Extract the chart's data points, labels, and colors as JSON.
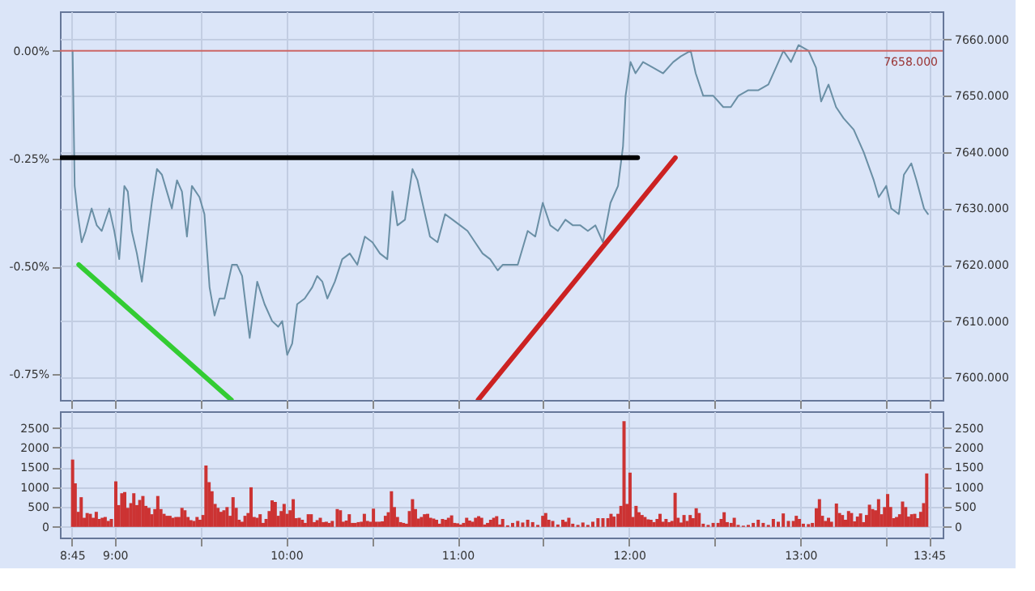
{
  "chart_data": [
    {
      "type": "line",
      "xlim": [
        8.68,
        13.83
      ],
      "ylim": [
        -0.8096,
        0.0914
      ],
      "yticks": [
        {
          "value": -0.75,
          "label": "-0.75%"
        },
        {
          "value": -0.5,
          "label": "-0.50%"
        },
        {
          "value": -0.25,
          "label": "-0.25%"
        },
        {
          "value": 0,
          "label": "0.00%"
        }
      ],
      "y2lim": [
        7596,
        7665
      ],
      "y2ticks": [
        {
          "value": 7600,
          "label": "7600.000"
        },
        {
          "value": 7610,
          "label": "7610.000"
        },
        {
          "value": 7620,
          "label": "7620.000"
        },
        {
          "value": 7630,
          "label": "7630.000"
        },
        {
          "value": 7640,
          "label": "7640.000"
        },
        {
          "value": 7650,
          "label": "7650.000"
        },
        {
          "value": 7660,
          "label": "7660.000"
        }
      ],
      "tick_labels": [
        "y",
        "y2"
      ],
      "grid": true,
      "ref_lines": [
        {
          "axis": "y2",
          "value": 7658,
          "label": "7658.000",
          "color": "#cc6666"
        }
      ],
      "series": [
        {
          "axis": "y2",
          "color": "#6a8fa5",
          "x": [
            8.754,
            8.766,
            8.784,
            8.807,
            8.83,
            8.865,
            8.895,
            8.924,
            8.968,
            8.997,
            9.026,
            9.056,
            9.076,
            9.099,
            9.129,
            9.158,
            9.187,
            9.216,
            9.246,
            9.275,
            9.304,
            9.333,
            9.363,
            9.392,
            9.421,
            9.45,
            9.494,
            9.523,
            9.553,
            9.582,
            9.611,
            9.64,
            9.684,
            9.713,
            9.743,
            9.787,
            9.831,
            9.874,
            9.918,
            9.953,
            9.977,
            10.006,
            10.035,
            10.064,
            10.108,
            10.152,
            10.181,
            10.211,
            10.24,
            10.284,
            10.327,
            10.371,
            10.415,
            10.459,
            10.503,
            10.547,
            10.59,
            10.62,
            10.649,
            10.693,
            10.737,
            10.766,
            10.795,
            10.839,
            10.883,
            10.927,
            10.971,
            11.015,
            11.058,
            11.102,
            11.146,
            11.19,
            11.234,
            11.263,
            11.351,
            11.409,
            11.453,
            11.497,
            11.541,
            11.585,
            11.629,
            11.673,
            11.716,
            11.76,
            11.804,
            11.848,
            11.892,
            11.936,
            11.965,
            11.98,
            12.009,
            12.038,
            12.082,
            12.141,
            12.199,
            12.258,
            12.302,
            12.36,
            12.389,
            12.433,
            12.492,
            12.55,
            12.594,
            12.638,
            12.696,
            12.755,
            12.813,
            12.857,
            12.901,
            12.945,
            12.989,
            13.047,
            13.091,
            13.121,
            13.164,
            13.208,
            13.252,
            13.311,
            13.369,
            13.428,
            13.457,
            13.501,
            13.53,
            13.574,
            13.604,
            13.647,
            13.677,
            13.721,
            13.744
          ],
          "values": [
            7658,
            7634,
            7629,
            7624,
            7626,
            7630,
            7627,
            7626,
            7630,
            7626,
            7621,
            7634,
            7633,
            7626,
            7622,
            7617,
            7624,
            7631,
            7637,
            7636,
            7633,
            7630,
            7635,
            7633,
            7625,
            7634,
            7632,
            7629,
            7616,
            7611,
            7614,
            7614,
            7620,
            7620,
            7618,
            7607,
            7617,
            7613,
            7610,
            7609,
            7610,
            7604,
            7606,
            7613,
            7614,
            7616,
            7618,
            7617,
            7614,
            7617,
            7621,
            7622,
            7620,
            7625,
            7624,
            7622,
            7621,
            7633,
            7627,
            7628,
            7637,
            7635,
            7631,
            7625,
            7624,
            7629,
            7628,
            7627,
            7626,
            7624,
            7622,
            7621,
            7619,
            7620,
            7620,
            7626,
            7625,
            7631,
            7627,
            7626,
            7628,
            7627,
            7627,
            7626,
            7627,
            7624,
            7631,
            7634,
            7641,
            7650,
            7656,
            7654,
            7656,
            7655,
            7654,
            7656,
            7657,
            7658,
            7654,
            7650,
            7650,
            7648,
            7648,
            7650,
            7651,
            7651,
            7652,
            7655,
            7658,
            7656,
            7659,
            7658,
            7655,
            7649,
            7652,
            7648,
            7646,
            7644,
            7640,
            7635,
            7632,
            7634,
            7630,
            7629,
            7636,
            7638,
            7635,
            7630,
            7629
          ]
        },
        {
          "axis": "y2",
          "color": "#000000",
          "x": [
            8.69,
            12.05
          ],
          "values": [
            7639,
            7639
          ]
        },
        {
          "axis": "y2",
          "color": "#33cc33",
          "x": [
            8.79,
            9.68
          ],
          "values": [
            7620,
            7596
          ]
        },
        {
          "axis": "y2",
          "color": "#cc2222",
          "x": [
            11.12,
            12.27
          ],
          "values": [
            7596,
            7639
          ]
        }
      ]
    },
    {
      "type": "bar",
      "xlim": [
        8.68,
        13.83
      ],
      "xticks": [
        {
          "value": 8.75,
          "label": "8:45"
        },
        {
          "value": 9,
          "label": "9:00"
        },
        {
          "value": 9.5,
          "label": null
        },
        {
          "value": 10,
          "label": "10:00"
        },
        {
          "value": 10.5,
          "label": null
        },
        {
          "value": 11,
          "label": "11:00"
        },
        {
          "value": 11.5,
          "label": null
        },
        {
          "value": 12,
          "label": "12:00"
        },
        {
          "value": 12.5,
          "label": null
        },
        {
          "value": 13,
          "label": "13:00"
        },
        {
          "value": 13.5,
          "label": null
        },
        {
          "value": 13.75,
          "label": "13:45"
        }
      ],
      "ylim": [
        -270,
        2920
      ],
      "yticks": [
        0,
        500,
        1000,
        1500,
        2000,
        2500
      ],
      "y2lim": [
        -270,
        2920
      ],
      "y2ticks": [
        0,
        500,
        1000,
        1500,
        2000,
        2500
      ],
      "grid": true,
      "series": [
        {
          "color": "#cc3333",
          "x": [
            8.754,
            8.769,
            8.787,
            8.804,
            8.822,
            8.839,
            8.857,
            8.874,
            8.892,
            8.909,
            8.927,
            8.944,
            8.962,
            8.98,
            9.006,
            9.023,
            9.041,
            9.058,
            9.076,
            9.094,
            9.111,
            9.129,
            9.146,
            9.164,
            9.181,
            9.199,
            9.216,
            9.234,
            9.251,
            9.269,
            9.287,
            9.304,
            9.322,
            9.339,
            9.357,
            9.374,
            9.392,
            9.409,
            9.427,
            9.444,
            9.462,
            9.48,
            9.497,
            9.515,
            9.532,
            9.55,
            9.567,
            9.585,
            9.602,
            9.62,
            9.637,
            9.655,
            9.673,
            9.69,
            9.708,
            9.725,
            9.743,
            9.76,
            9.778,
            9.795,
            9.813,
            9.83,
            9.848,
            9.866,
            9.883,
            9.901,
            9.918,
            9.936,
            9.953,
            9.971,
            9.988,
            10.006,
            10.023,
            10.041,
            10.058,
            10.076,
            10.094,
            10.111,
            10.129,
            10.146,
            10.164,
            10.181,
            10.199,
            10.216,
            10.234,
            10.251,
            10.269,
            10.298,
            10.316,
            10.333,
            10.351,
            10.368,
            10.386,
            10.403,
            10.421,
            10.439,
            10.456,
            10.474,
            10.491,
            10.509,
            10.526,
            10.544,
            10.561,
            10.579,
            10.596,
            10.614,
            10.631,
            10.649,
            10.667,
            10.684,
            10.702,
            10.719,
            10.737,
            10.754,
            10.772,
            10.789,
            10.807,
            10.825,
            10.842,
            10.86,
            10.877,
            10.895,
            10.912,
            10.93,
            10.947,
            10.965,
            10.982,
            11.0,
            11.018,
            11.035,
            11.053,
            11.07,
            11.088,
            11.105,
            11.123,
            11.14,
            11.158,
            11.175,
            11.193,
            11.211,
            11.228,
            11.246,
            11.263,
            11.292,
            11.321,
            11.351,
            11.38,
            11.409,
            11.438,
            11.468,
            11.497,
            11.514,
            11.532,
            11.555,
            11.585,
            11.614,
            11.631,
            11.649,
            11.672,
            11.702,
            11.731,
            11.76,
            11.789,
            11.819,
            11.848,
            11.877,
            11.895,
            11.912,
            11.936,
            11.953,
            11.971,
            11.988,
            12.006,
            12.023,
            12.041,
            12.058,
            12.076,
            12.093,
            12.111,
            12.128,
            12.146,
            12.164,
            12.181,
            12.199,
            12.216,
            12.234,
            12.251,
            12.269,
            12.286,
            12.304,
            12.321,
            12.339,
            12.357,
            12.374,
            12.392,
            12.409,
            12.433,
            12.462,
            12.491,
            12.52,
            12.538,
            12.555,
            12.573,
            12.596,
            12.614,
            12.637,
            12.667,
            12.696,
            12.725,
            12.754,
            12.783,
            12.813,
            12.842,
            12.871,
            12.9,
            12.93,
            12.959,
            12.976,
            12.994,
            13.017,
            13.047,
            13.07,
            13.093,
            13.111,
            13.128,
            13.146,
            13.164,
            13.181,
            13.21,
            13.228,
            13.245,
            13.263,
            13.281,
            13.298,
            13.316,
            13.333,
            13.351,
            13.368,
            13.386,
            13.403,
            13.421,
            13.438,
            13.456,
            13.474,
            13.491,
            13.509,
            13.526,
            13.544,
            13.561,
            13.579,
            13.596,
            13.614,
            13.631,
            13.649,
            13.667,
            13.684,
            13.702,
            13.719,
            13.737
          ],
          "values": [
            1700,
            1100,
            380,
            750,
            230,
            350,
            330,
            230,
            380,
            200,
            230,
            250,
            150,
            200,
            1150,
            550,
            850,
            880,
            480,
            600,
            850,
            550,
            680,
            780,
            530,
            480,
            320,
            450,
            780,
            450,
            330,
            280,
            280,
            230,
            250,
            250,
            480,
            420,
            250,
            170,
            150,
            250,
            180,
            300,
            1550,
            1130,
            900,
            580,
            480,
            380,
            420,
            500,
            280,
            750,
            480,
            180,
            130,
            280,
            350,
            1000,
            250,
            230,
            320,
            100,
            200,
            400,
            670,
            630,
            280,
            400,
            580,
            330,
            420,
            700,
            220,
            230,
            180,
            100,
            320,
            320,
            120,
            170,
            230,
            120,
            130,
            100,
            150,
            450,
            420,
            130,
            160,
            320,
            100,
            100,
            120,
            130,
            330,
            150,
            130,
            460,
            130,
            130,
            140,
            280,
            370,
            900,
            500,
            250,
            120,
            100,
            80,
            400,
            700,
            450,
            210,
            250,
            320,
            330,
            230,
            210,
            180,
            80,
            200,
            180,
            230,
            290,
            100,
            90,
            60,
            100,
            230,
            160,
            130,
            230,
            270,
            230,
            60,
            100,
            180,
            230,
            270,
            60,
            200,
            40,
            100,
            150,
            110,
            180,
            120,
            50,
            280,
            350,
            180,
            150,
            60,
            180,
            130,
            230,
            80,
            50,
            110,
            50,
            130,
            220,
            220,
            220,
            330,
            260,
            330,
            530,
            2670,
            580,
            1370,
            250,
            530,
            370,
            300,
            250,
            190,
            180,
            120,
            200,
            330,
            130,
            200,
            120,
            150,
            860,
            230,
            110,
            300,
            150,
            300,
            220,
            470,
            350,
            80,
            50,
            100,
            100,
            200,
            370,
            120,
            100,
            230,
            50,
            30,
            50,
            100,
            180,
            100,
            50,
            200,
            130,
            340,
            150,
            150,
            280,
            200,
            80,
            70,
            100,
            470,
            700,
            280,
            150,
            230,
            130,
            590,
            350,
            300,
            180,
            400,
            350,
            140,
            260,
            340,
            120,
            300,
            560,
            450,
            420,
            700,
            320,
            500,
            830,
            500,
            220,
            250,
            320,
            640,
            500,
            260,
            320,
            330,
            220,
            380,
            600,
            1350
          ]
        }
      ]
    }
  ]
}
